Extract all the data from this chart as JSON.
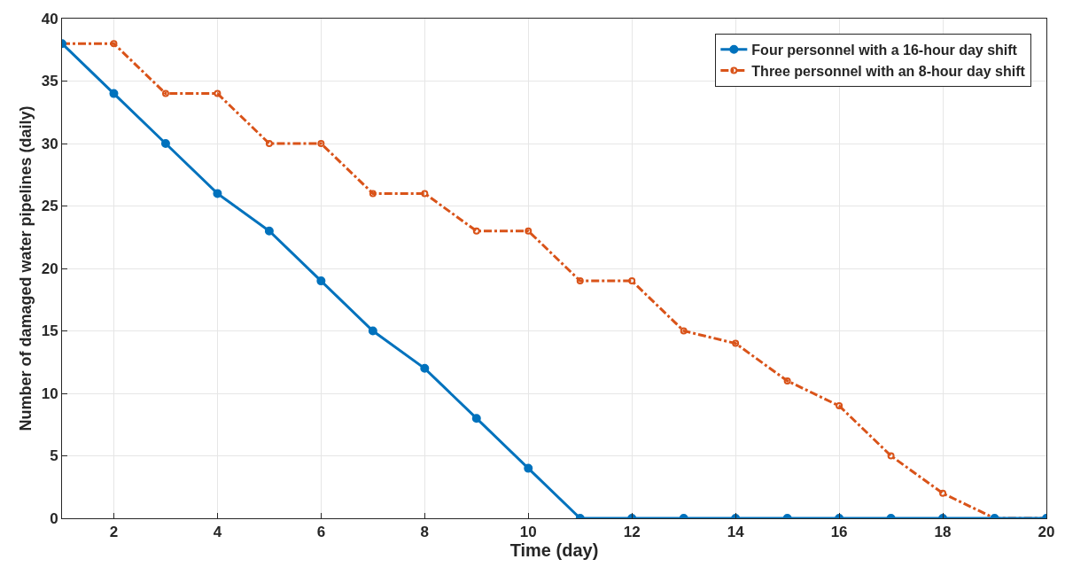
{
  "chart_data": {
    "type": "line",
    "xlabel": "Time (day)",
    "ylabel": "Number of damaged water pipelines (daily)",
    "x": [
      1,
      2,
      3,
      4,
      5,
      6,
      7,
      8,
      9,
      10,
      11,
      12,
      13,
      14,
      15,
      16,
      17,
      18,
      19,
      20
    ],
    "series": [
      {
        "name": "Four personnel with a 16-hour day shift",
        "color": "#0072bd",
        "line_style": "solid",
        "values": [
          38,
          34,
          30,
          26,
          23,
          19,
          15,
          12,
          8,
          4,
          0,
          0,
          0,
          0,
          0,
          0,
          0,
          0,
          0,
          0
        ]
      },
      {
        "name": "Three personnel with an 8-hour day shift",
        "color": "#d95319",
        "line_style": "dashdot",
        "values": [
          38,
          38,
          34,
          34,
          30,
          30,
          26,
          26,
          23,
          23,
          19,
          19,
          15,
          14,
          11,
          9,
          5,
          2,
          0,
          0
        ]
      }
    ],
    "xlim": [
      1,
      20
    ],
    "xticks": [
      2,
      4,
      6,
      8,
      10,
      12,
      14,
      16,
      18,
      20
    ],
    "ylim": [
      0,
      40
    ],
    "yticks": [
      0,
      5,
      10,
      15,
      20,
      25,
      30,
      35,
      40
    ],
    "grid": true,
    "legend": "top right",
    "marker": "circle"
  }
}
